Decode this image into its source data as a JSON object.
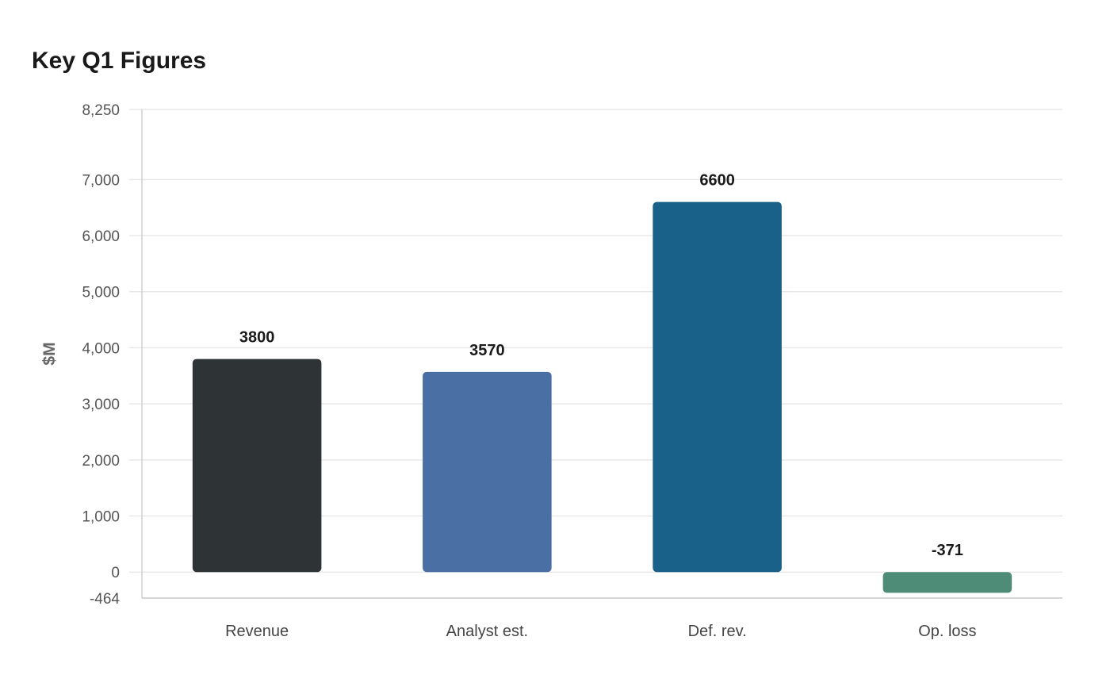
{
  "chart_data": {
    "type": "bar",
    "title": "Key Q1 Figures",
    "xlabel": "",
    "ylabel": "$M",
    "categories": [
      "Revenue",
      "Analyst est.",
      "Def. rev.",
      "Op. loss"
    ],
    "values": [
      3800,
      3570,
      6600,
      -371
    ],
    "value_labels": [
      "3800",
      "3570",
      "6600",
      "-371"
    ],
    "colors": [
      "#2e3436",
      "#4a6fa5",
      "#1a6189",
      "#4f8c78"
    ],
    "ylim": [
      -464,
      8250
    ],
    "yticks": [
      -464,
      0,
      1000,
      2000,
      3000,
      4000,
      5000,
      6000,
      7000,
      8250
    ],
    "ytick_labels": [
      "-464",
      "0",
      "1,000",
      "2,000",
      "3,000",
      "4,000",
      "5,000",
      "6,000",
      "7,000",
      "8,250"
    ],
    "grid": true,
    "legend": "none"
  }
}
